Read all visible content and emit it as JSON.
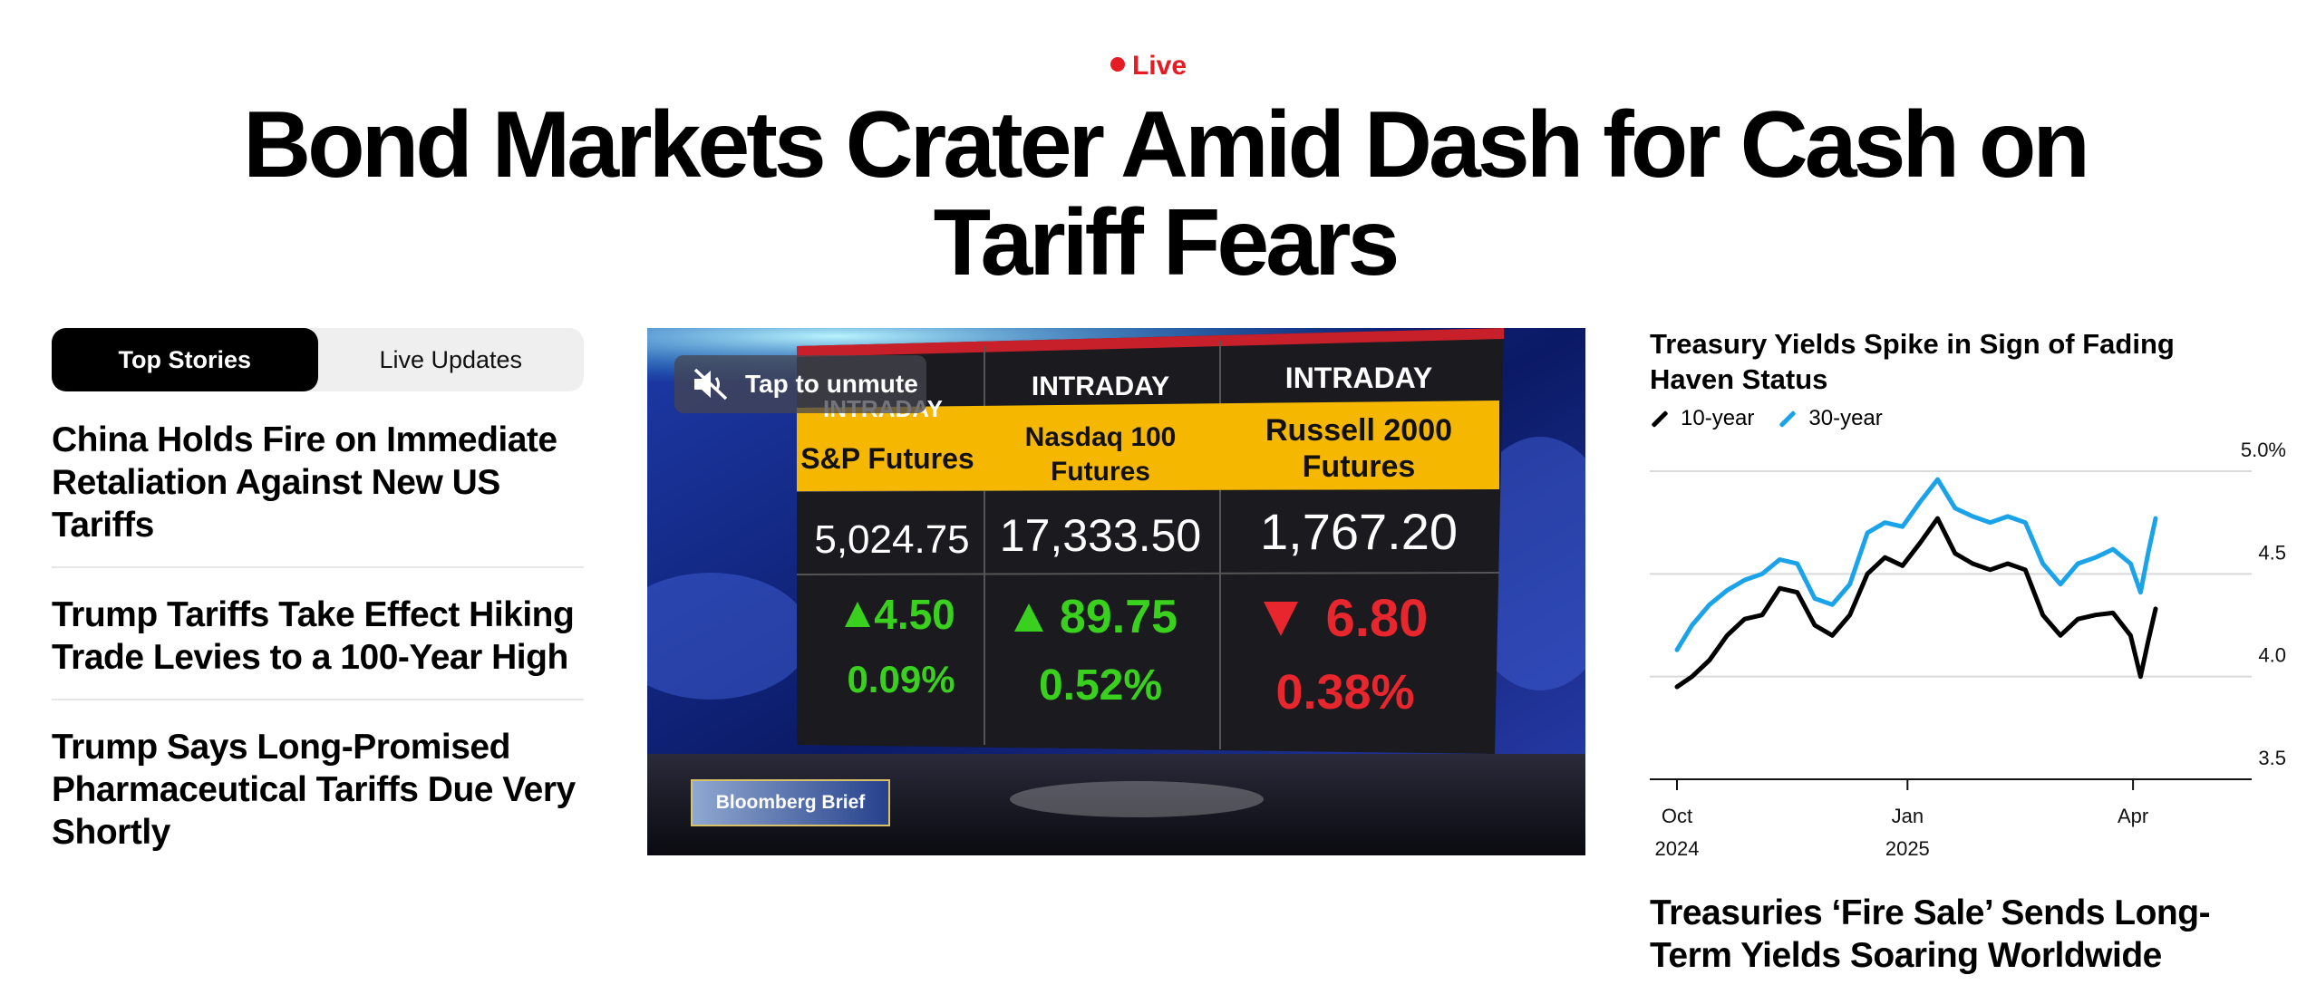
{
  "live": {
    "label": "Live",
    "color": "#e51c23"
  },
  "headline": "Bond Markets Crater Amid Dash for Cash on Tariff Fears",
  "tabs": [
    {
      "label": "Top Stories",
      "active": true
    },
    {
      "label": "Live Updates",
      "active": false
    }
  ],
  "stories": [
    "China Holds Fire on Immediate Retaliation Against New US Tariffs",
    "Trump Tariffs Take Effect Hiking Trade Levies to a 100-Year High",
    "Trump Says Long-Promised Pharmaceutical Tariffs Due Very Shortly"
  ],
  "video": {
    "unmute_label": "Tap to unmute",
    "unmute_icon": "speaker-muted-icon",
    "brand_tag": "Bloomberg Brief",
    "board": {
      "row_header": "INTRADAY",
      "columns": [
        {
          "header": "INTRADAY",
          "name": "S&P Futures",
          "price": "5,024.75",
          "change": "4.50",
          "pct": "0.09%",
          "direction": "up"
        },
        {
          "header": "INTRADAY",
          "name": "Nasdaq 100 Futures",
          "price": "17,333.50",
          "change": "89.75",
          "pct": "0.52%",
          "direction": "up"
        },
        {
          "header": "INTRADAY",
          "name": "Russell 2000 Futures",
          "price": "1,767.20",
          "change": "6.80",
          "pct": "0.38%",
          "direction": "down"
        }
      ]
    }
  },
  "chart_panel": {
    "title": "Treasury Yields Spike in Sign of Fading Haven Status",
    "sub_headline": "Treasuries ‘Fire Sale’ Sends Long-Term Yields Soaring Worldwide"
  },
  "chart_data": {
    "type": "line",
    "title": "Treasury Yields Spike in Sign of Fading Haven Status",
    "ylim": [
      3.5,
      5.0
    ],
    "yticks": [
      "5.0%",
      "4.5",
      "4.0",
      "3.5"
    ],
    "ytick_values": [
      5.0,
      4.5,
      4.0,
      3.5
    ],
    "xticks": [
      {
        "label": "Oct",
        "sublabel": "2024",
        "x": "2024-10-01"
      },
      {
        "label": "Jan",
        "sublabel": "2025",
        "x": "2025-01-01"
      },
      {
        "label": "Apr",
        "sublabel": "",
        "x": "2025-04-01"
      }
    ],
    "x_start": "2024-10-01",
    "x_end": "2025-04-10",
    "grid": true,
    "legend_placement": "top-left",
    "series": [
      {
        "name": "10-year",
        "color": "#000000",
        "points": [
          [
            "2024-10-01",
            3.95
          ],
          [
            "2024-10-07",
            4.0
          ],
          [
            "2024-10-14",
            4.08
          ],
          [
            "2024-10-21",
            4.2
          ],
          [
            "2024-10-28",
            4.28
          ],
          [
            "2024-11-04",
            4.3
          ],
          [
            "2024-11-11",
            4.43
          ],
          [
            "2024-11-18",
            4.41
          ],
          [
            "2024-11-25",
            4.25
          ],
          [
            "2024-12-02",
            4.2
          ],
          [
            "2024-12-09",
            4.3
          ],
          [
            "2024-12-16",
            4.5
          ],
          [
            "2024-12-23",
            4.58
          ],
          [
            "2024-12-30",
            4.54
          ],
          [
            "2025-01-06",
            4.65
          ],
          [
            "2025-01-13",
            4.77
          ],
          [
            "2025-01-20",
            4.6
          ],
          [
            "2025-01-27",
            4.55
          ],
          [
            "2025-02-03",
            4.52
          ],
          [
            "2025-02-10",
            4.55
          ],
          [
            "2025-02-17",
            4.52
          ],
          [
            "2025-02-24",
            4.3
          ],
          [
            "2025-03-03",
            4.2
          ],
          [
            "2025-03-10",
            4.28
          ],
          [
            "2025-03-17",
            4.3
          ],
          [
            "2025-03-24",
            4.31
          ],
          [
            "2025-03-31",
            4.2
          ],
          [
            "2025-04-04",
            4.0
          ],
          [
            "2025-04-07",
            4.17
          ],
          [
            "2025-04-10",
            4.33
          ]
        ]
      },
      {
        "name": "30-year",
        "color": "#1aa3e8",
        "points": [
          [
            "2024-10-01",
            4.13
          ],
          [
            "2024-10-07",
            4.25
          ],
          [
            "2024-10-14",
            4.35
          ],
          [
            "2024-10-21",
            4.42
          ],
          [
            "2024-10-28",
            4.47
          ],
          [
            "2024-11-04",
            4.5
          ],
          [
            "2024-11-11",
            4.57
          ],
          [
            "2024-11-18",
            4.55
          ],
          [
            "2024-11-25",
            4.38
          ],
          [
            "2024-12-02",
            4.35
          ],
          [
            "2024-12-09",
            4.45
          ],
          [
            "2024-12-16",
            4.7
          ],
          [
            "2024-12-23",
            4.75
          ],
          [
            "2024-12-30",
            4.73
          ],
          [
            "2025-01-06",
            4.85
          ],
          [
            "2025-01-13",
            4.96
          ],
          [
            "2025-01-20",
            4.82
          ],
          [
            "2025-01-27",
            4.78
          ],
          [
            "2025-02-03",
            4.75
          ],
          [
            "2025-02-10",
            4.78
          ],
          [
            "2025-02-17",
            4.75
          ],
          [
            "2025-02-24",
            4.55
          ],
          [
            "2025-03-03",
            4.45
          ],
          [
            "2025-03-10",
            4.55
          ],
          [
            "2025-03-17",
            4.58
          ],
          [
            "2025-03-24",
            4.62
          ],
          [
            "2025-03-31",
            4.55
          ],
          [
            "2025-04-04",
            4.41
          ],
          [
            "2025-04-07",
            4.6
          ],
          [
            "2025-04-10",
            4.77
          ]
        ]
      }
    ]
  }
}
